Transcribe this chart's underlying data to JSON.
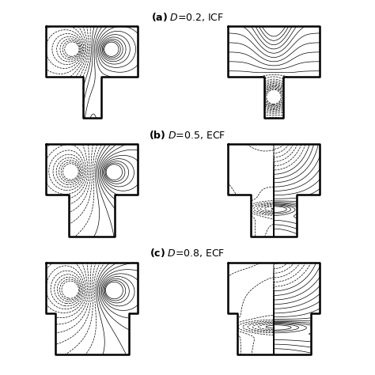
{
  "title_a": "(a)",
  "title_b": "(b)",
  "title_c": "(c)",
  "label_a": "$D$=0.2, ICF",
  "label_b": "$D$=0.5, ECF",
  "label_c": "$D$=0.8, ECF",
  "background": "#ffffff",
  "nlevels": 22,
  "D_values": [
    0.2,
    0.5,
    0.8
  ],
  "fig_width": 4.74,
  "fig_height": 4.74,
  "dpi": 100
}
